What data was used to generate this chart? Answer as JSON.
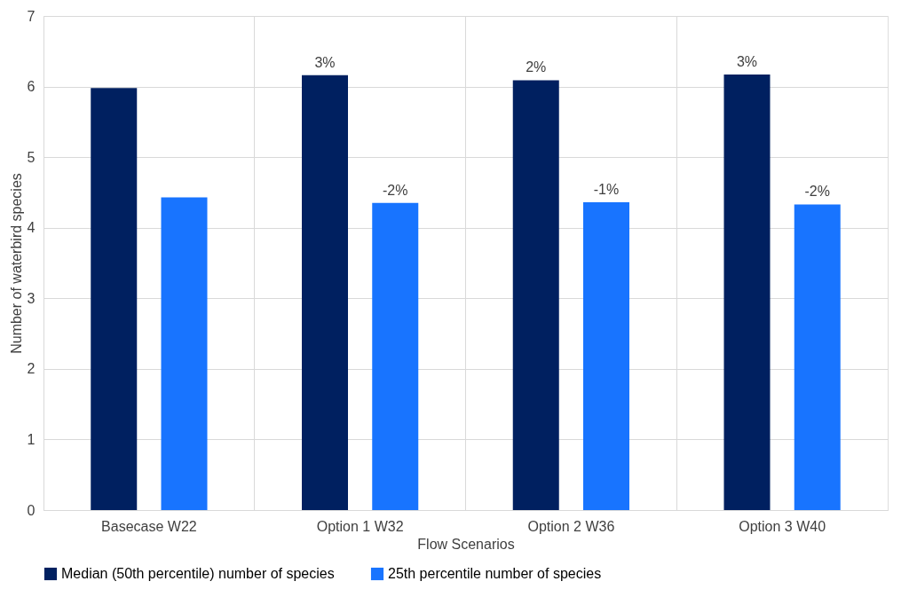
{
  "chart_data": {
    "type": "bar",
    "xlabel": "Flow Scenarios",
    "ylabel": "Number of waterbird species",
    "categories": [
      "Basecase W22",
      "Option 1 W32",
      "Option 2 W36",
      "Option 3 W40"
    ],
    "series": [
      {
        "name": "Median (50th percentile) number of species",
        "color": "#002060",
        "values": [
          5.98,
          6.16,
          6.09,
          6.17
        ]
      },
      {
        "name": "25th percentile number of species",
        "color": "#1874ff",
        "values": [
          4.43,
          4.35,
          4.36,
          4.33
        ]
      }
    ],
    "annotations": [
      "3%",
      "-2%",
      "2%",
      "-1%",
      "3%",
      "-2%"
    ],
    "ylim": [
      0,
      7
    ],
    "yticks": [
      0,
      1,
      2,
      3,
      4,
      5,
      6,
      7
    ],
    "grid": true,
    "legend": "bottom"
  }
}
